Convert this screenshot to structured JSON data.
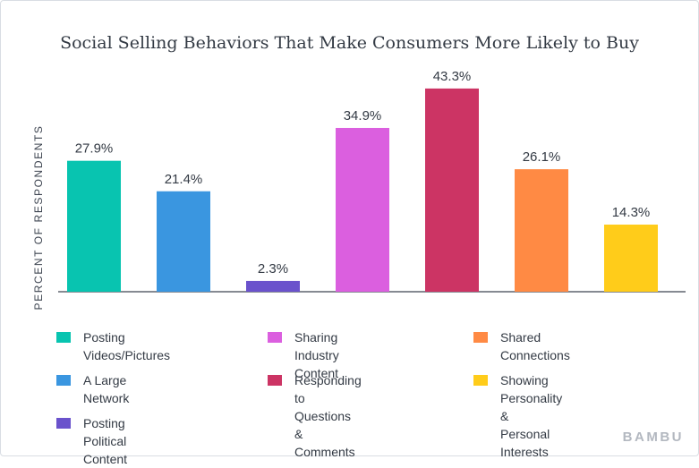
{
  "chart_data": {
    "type": "bar",
    "title": "Social Selling Behaviors That Make Consumers More Likely to Buy",
    "ylabel": "PERCENT OF RESPONDENTS",
    "xlabel": "",
    "ylim": [
      0,
      45
    ],
    "grid": false,
    "categories": [
      "Posting Videos/Pictures",
      "A Large Network",
      "Posting Political Content",
      "Sharing Industry Content",
      "Responding to Questions & Comments",
      "Shared  Connections",
      "Showing Personality & Personal Interests"
    ],
    "values": [
      27.9,
      21.4,
      2.3,
      34.9,
      43.3,
      26.1,
      14.3
    ],
    "value_labels": [
      "27.9%",
      "21.4%",
      "2.3%",
      "34.9%",
      "43.3%",
      "26.1%",
      "14.3%"
    ],
    "colors": [
      "#08c4b0",
      "#3a96e0",
      "#6a52cc",
      "#db5fdf",
      "#cc3464",
      "#ff8a44",
      "#ffcc1a"
    ],
    "legend": [
      {
        "label": "Posting Videos/Pictures",
        "color": "#08c4b0"
      },
      {
        "label": "A Large Network",
        "color": "#3a96e0"
      },
      {
        "label": "Posting Political Content",
        "color": "#6a52cc"
      },
      {
        "label": "Sharing Industry Content",
        "color": "#db5fdf"
      },
      {
        "label": "Responding to Questions\n& Comments",
        "color": "#cc3464"
      },
      {
        "label": "Shared  Connections",
        "color": "#ff8a44"
      },
      {
        "label": "Showing Personality &\nPersonal Interests",
        "color": "#ffcc1a"
      }
    ],
    "legend_position": "bottom"
  },
  "branding": {
    "logo_text": "BAMBU"
  }
}
